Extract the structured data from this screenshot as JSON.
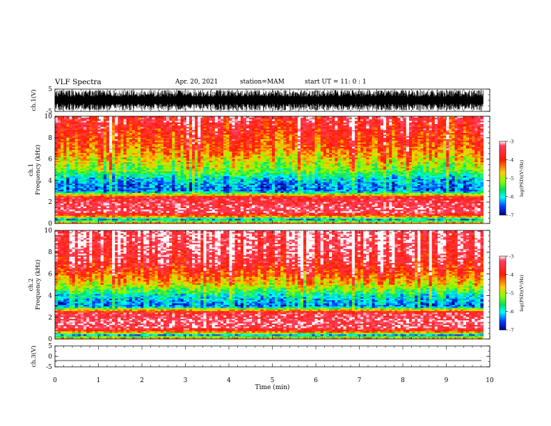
{
  "header": {
    "title": "VLF Spectra",
    "date": "Apr. 20, 2021",
    "station": "station=MAM",
    "start": "start  UT =   11: 0  : 1"
  },
  "chart_data": [
    {
      "type": "line",
      "panel": "ch1-waveform",
      "ylabel": "ch.1(V)",
      "ylim": [
        -5,
        5
      ],
      "yticks": [
        "5",
        "-5"
      ],
      "xlim": [
        0,
        10
      ],
      "signal_range": [
        -4.5,
        4.5
      ],
      "signal_end_min": 9.85
    },
    {
      "type": "heatmap",
      "panel": "ch1-spectrogram",
      "ylabel": "ch.1 Frequency (kHz)",
      "ylim": [
        0,
        10
      ],
      "yticks": [
        "0",
        "2",
        "4",
        "6",
        "8",
        "10"
      ],
      "xlim": [
        0,
        10
      ],
      "data_end_min": 9.85,
      "colorbar": {
        "label": "log(PSD)(V²/Hz)",
        "range": [
          -7,
          -3
        ],
        "ticks": [
          "-3",
          "-4",
          "-5",
          "-6",
          "-7"
        ]
      },
      "bands_khz_to_log": [
        [
          0,
          -4.2
        ],
        [
          0.35,
          -6.3
        ],
        [
          0.6,
          -4.6
        ],
        [
          1.0,
          -3.3
        ],
        [
          1.7,
          -3.4
        ],
        [
          2.4,
          -3.6
        ],
        [
          2.75,
          -5.1
        ],
        [
          3.0,
          -6.5
        ],
        [
          4.0,
          -6.2
        ],
        [
          5.0,
          -5.3
        ],
        [
          6.0,
          -4.8
        ],
        [
          7.0,
          -4.3
        ],
        [
          8.5,
          -3.9
        ],
        [
          10.0,
          -3.5
        ]
      ]
    },
    {
      "type": "heatmap",
      "panel": "ch2-spectrogram",
      "ylabel": "ch.2 Frequency (kHz)",
      "ylim": [
        0,
        10
      ],
      "yticks": [
        "0",
        "2",
        "4",
        "6",
        "8",
        "10"
      ],
      "xlim": [
        0,
        10
      ],
      "data_end_min": 9.85,
      "colorbar": {
        "label": "log(PSD)(V²/Hz)",
        "range": [
          -7,
          -3
        ],
        "ticks": [
          "-3",
          "-4",
          "-5",
          "-6",
          "-7"
        ]
      },
      "bands_khz_to_log": [
        [
          0,
          -4.1
        ],
        [
          0.35,
          -6.3
        ],
        [
          0.6,
          -4.5
        ],
        [
          1.0,
          -3.3
        ],
        [
          1.7,
          -3.3
        ],
        [
          2.4,
          -3.5
        ],
        [
          2.75,
          -5.0
        ],
        [
          3.0,
          -6.4
        ],
        [
          4.0,
          -5.9
        ],
        [
          5.0,
          -4.8
        ],
        [
          6.0,
          -4.1
        ],
        [
          7.0,
          -3.6
        ],
        [
          8.5,
          -3.3
        ],
        [
          10.0,
          -3.2
        ]
      ]
    },
    {
      "type": "line",
      "panel": "ch3-waveform",
      "ylabel": "ch.3(V)",
      "ylim": [
        -5,
        5
      ],
      "yticks": [
        "5",
        "0",
        "-5"
      ],
      "xlim": [
        0,
        10
      ],
      "flat_value": -2.0
    }
  ],
  "x_axis": {
    "label": "Time  (min)",
    "ticks": [
      "0",
      "1",
      "2",
      "3",
      "4",
      "5",
      "6",
      "7",
      "8",
      "9",
      "10"
    ]
  },
  "colors": {
    "axis": "#000000",
    "background": "#ffffff"
  }
}
